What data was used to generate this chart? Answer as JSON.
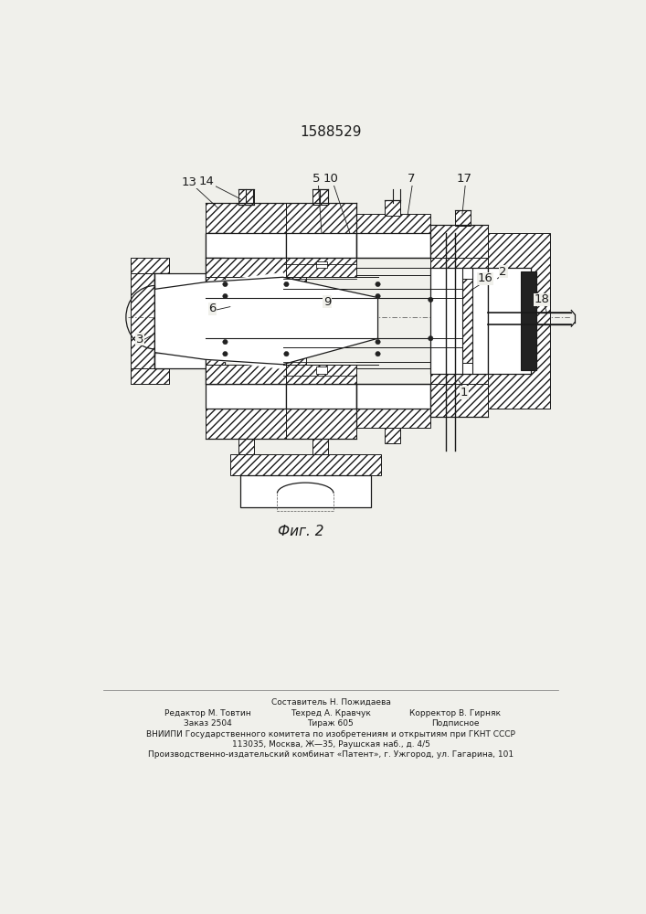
{
  "patent_number": "1588529",
  "figure_caption": "Фиг. 2",
  "bg_color": "#f0f0eb",
  "line_color": "#1a1a1a",
  "footer": {
    "line0": "Составитель Н. Пожидаева",
    "col1_line1": "Редактор М. Товтин",
    "col2_line1": "Техред А. Кравчук",
    "col3_line1": "Корректор В. Гирняк",
    "col1_line2": "Заказ 2504",
    "col2_line2": "Тираж 605",
    "col3_line2": "Подписное",
    "line3": "ВНИИПИ Государственного комитета по изобретениям и открытиям при ГКНТ СССР",
    "line4": "113035, Москва, Ж—35, Раушская наб., д. 4/5",
    "line5": "Производственно-издательский комбинат «Патент», г. Ужгород, ул. Гагарина, 101"
  }
}
